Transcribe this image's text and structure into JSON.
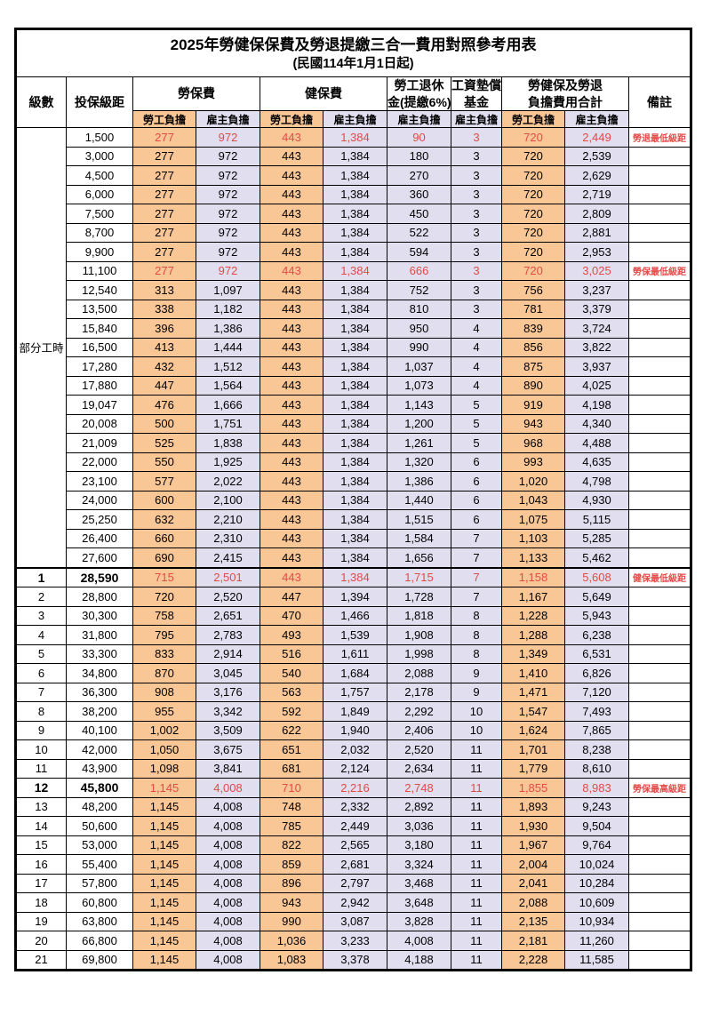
{
  "title": "2025年勞健保保費及勞退提繳三合一費用對照參考用表",
  "subtitle": "(民國114年1月1日起)",
  "colors": {
    "employee_bg": "#F9C696",
    "employer_bg": "#E1DEEF",
    "highlight_text": "#E14B47"
  },
  "header": {
    "level": "級數",
    "bracket": "投保級距",
    "labor": "勞保費",
    "health": "健保費",
    "pension_line1": "勞工退休",
    "pension_line2": "金(提繳6%)",
    "wage_line1": "工資墊償",
    "wage_line2": "基金",
    "total_line1": "勞健保及勞退",
    "total_line2": "負擔費用合計",
    "remark": "備註",
    "employee": "勞工負擔",
    "employer": "雇主負擔"
  },
  "part_time_label": "部分工時",
  "rows": [
    [
      "",
      "1,500",
      "277",
      "972",
      "443",
      "1,384",
      "90",
      "3",
      "720",
      "2,449",
      "勞退最低級距",
      1
    ],
    [
      "",
      "3,000",
      "277",
      "972",
      "443",
      "1,384",
      "180",
      "3",
      "720",
      "2,539",
      "",
      0
    ],
    [
      "",
      "4,500",
      "277",
      "972",
      "443",
      "1,384",
      "270",
      "3",
      "720",
      "2,629",
      "",
      0
    ],
    [
      "",
      "6,000",
      "277",
      "972",
      "443",
      "1,384",
      "360",
      "3",
      "720",
      "2,719",
      "",
      0
    ],
    [
      "",
      "7,500",
      "277",
      "972",
      "443",
      "1,384",
      "450",
      "3",
      "720",
      "2,809",
      "",
      0
    ],
    [
      "",
      "8,700",
      "277",
      "972",
      "443",
      "1,384",
      "522",
      "3",
      "720",
      "2,881",
      "",
      0
    ],
    [
      "",
      "9,900",
      "277",
      "972",
      "443",
      "1,384",
      "594",
      "3",
      "720",
      "2,953",
      "",
      0
    ],
    [
      "",
      "11,100",
      "277",
      "972",
      "443",
      "1,384",
      "666",
      "3",
      "720",
      "3,025",
      "勞保最低級距",
      1
    ],
    [
      "",
      "12,540",
      "313",
      "1,097",
      "443",
      "1,384",
      "752",
      "3",
      "756",
      "3,237",
      "",
      0
    ],
    [
      "",
      "13,500",
      "338",
      "1,182",
      "443",
      "1,384",
      "810",
      "3",
      "781",
      "3,379",
      "",
      0
    ],
    [
      "",
      "15,840",
      "396",
      "1,386",
      "443",
      "1,384",
      "950",
      "4",
      "839",
      "3,724",
      "",
      0
    ],
    [
      "",
      "16,500",
      "413",
      "1,444",
      "443",
      "1,384",
      "990",
      "4",
      "856",
      "3,822",
      "",
      0
    ],
    [
      "",
      "17,280",
      "432",
      "1,512",
      "443",
      "1,384",
      "1,037",
      "4",
      "875",
      "3,937",
      "",
      0
    ],
    [
      "",
      "17,880",
      "447",
      "1,564",
      "443",
      "1,384",
      "1,073",
      "4",
      "890",
      "4,025",
      "",
      0
    ],
    [
      "",
      "19,047",
      "476",
      "1,666",
      "443",
      "1,384",
      "1,143",
      "5",
      "919",
      "4,198",
      "",
      0
    ],
    [
      "",
      "20,008",
      "500",
      "1,751",
      "443",
      "1,384",
      "1,200",
      "5",
      "943",
      "4,340",
      "",
      0
    ],
    [
      "",
      "21,009",
      "525",
      "1,838",
      "443",
      "1,384",
      "1,261",
      "5",
      "968",
      "4,488",
      "",
      0
    ],
    [
      "",
      "22,000",
      "550",
      "1,925",
      "443",
      "1,384",
      "1,320",
      "6",
      "993",
      "4,635",
      "",
      0
    ],
    [
      "",
      "23,100",
      "577",
      "2,022",
      "443",
      "1,384",
      "1,386",
      "6",
      "1,020",
      "4,798",
      "",
      0
    ],
    [
      "",
      "24,000",
      "600",
      "2,100",
      "443",
      "1,384",
      "1,440",
      "6",
      "1,043",
      "4,930",
      "",
      0
    ],
    [
      "",
      "25,250",
      "632",
      "2,210",
      "443",
      "1,384",
      "1,515",
      "6",
      "1,075",
      "5,115",
      "",
      0
    ],
    [
      "",
      "26,400",
      "660",
      "2,310",
      "443",
      "1,384",
      "1,584",
      "7",
      "1,103",
      "5,285",
      "",
      0
    ],
    [
      "",
      "27,600",
      "690",
      "2,415",
      "443",
      "1,384",
      "1,656",
      "7",
      "1,133",
      "5,462",
      "",
      0
    ],
    [
      "1",
      "28,590",
      "715",
      "2,501",
      "443",
      "1,384",
      "1,715",
      "7",
      "1,158",
      "5,608",
      "健保最低級距",
      2
    ],
    [
      "2",
      "28,800",
      "720",
      "2,520",
      "447",
      "1,394",
      "1,728",
      "7",
      "1,167",
      "5,649",
      "",
      0
    ],
    [
      "3",
      "30,300",
      "758",
      "2,651",
      "470",
      "1,466",
      "1,818",
      "8",
      "1,228",
      "5,943",
      "",
      0
    ],
    [
      "4",
      "31,800",
      "795",
      "2,783",
      "493",
      "1,539",
      "1,908",
      "8",
      "1,288",
      "6,238",
      "",
      0
    ],
    [
      "5",
      "33,300",
      "833",
      "2,914",
      "516",
      "1,611",
      "1,998",
      "8",
      "1,349",
      "6,531",
      "",
      0
    ],
    [
      "6",
      "34,800",
      "870",
      "3,045",
      "540",
      "1,684",
      "2,088",
      "9",
      "1,410",
      "6,826",
      "",
      0
    ],
    [
      "7",
      "36,300",
      "908",
      "3,176",
      "563",
      "1,757",
      "2,178",
      "9",
      "1,471",
      "7,120",
      "",
      0
    ],
    [
      "8",
      "38,200",
      "955",
      "3,342",
      "592",
      "1,849",
      "2,292",
      "10",
      "1,547",
      "7,493",
      "",
      0
    ],
    [
      "9",
      "40,100",
      "1,002",
      "3,509",
      "622",
      "1,940",
      "2,406",
      "10",
      "1,624",
      "7,865",
      "",
      0
    ],
    [
      "10",
      "42,000",
      "1,050",
      "3,675",
      "651",
      "2,032",
      "2,520",
      "11",
      "1,701",
      "8,238",
      "",
      0
    ],
    [
      "11",
      "43,900",
      "1,098",
      "3,841",
      "681",
      "2,124",
      "2,634",
      "11",
      "1,779",
      "8,610",
      "",
      0
    ],
    [
      "12",
      "45,800",
      "1,145",
      "4,008",
      "710",
      "2,216",
      "2,748",
      "11",
      "1,855",
      "8,983",
      "勞保最高級距",
      2
    ],
    [
      "13",
      "48,200",
      "1,145",
      "4,008",
      "748",
      "2,332",
      "2,892",
      "11",
      "1,893",
      "9,243",
      "",
      0
    ],
    [
      "14",
      "50,600",
      "1,145",
      "4,008",
      "785",
      "2,449",
      "3,036",
      "11",
      "1,930",
      "9,504",
      "",
      0
    ],
    [
      "15",
      "53,000",
      "1,145",
      "4,008",
      "822",
      "2,565",
      "3,180",
      "11",
      "1,967",
      "9,764",
      "",
      0
    ],
    [
      "16",
      "55,400",
      "1,145",
      "4,008",
      "859",
      "2,681",
      "3,324",
      "11",
      "2,004",
      "10,024",
      "",
      0
    ],
    [
      "17",
      "57,800",
      "1,145",
      "4,008",
      "896",
      "2,797",
      "3,468",
      "11",
      "2,041",
      "10,284",
      "",
      0
    ],
    [
      "18",
      "60,800",
      "1,145",
      "4,008",
      "943",
      "2,942",
      "3,648",
      "11",
      "2,088",
      "10,609",
      "",
      0
    ],
    [
      "19",
      "63,800",
      "1,145",
      "4,008",
      "990",
      "3,087",
      "3,828",
      "11",
      "2,135",
      "10,934",
      "",
      0
    ],
    [
      "20",
      "66,800",
      "1,145",
      "4,008",
      "1,036",
      "3,233",
      "4,008",
      "11",
      "2,181",
      "11,260",
      "",
      0
    ],
    [
      "21",
      "69,800",
      "1,145",
      "4,008",
      "1,083",
      "3,378",
      "4,188",
      "11",
      "2,228",
      "11,585",
      "",
      0
    ]
  ]
}
